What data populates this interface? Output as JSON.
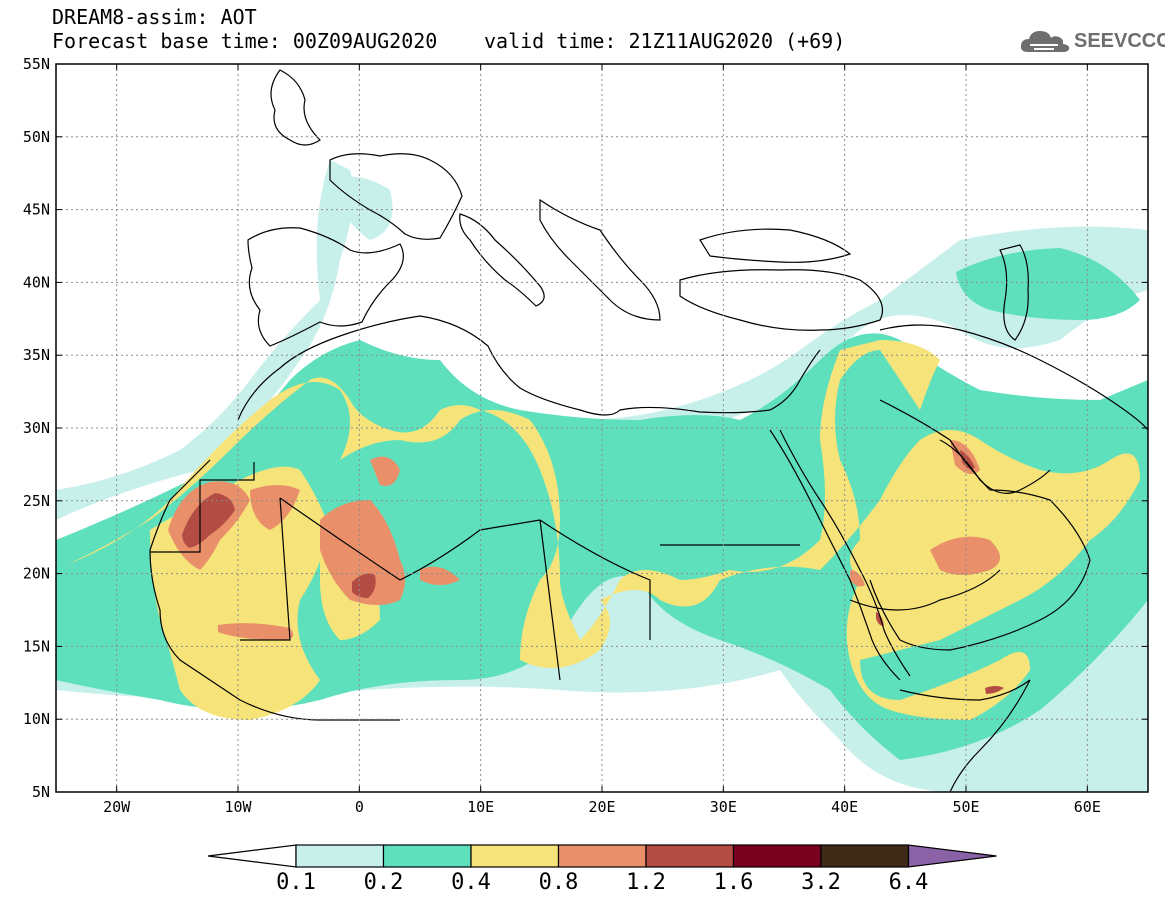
{
  "header": {
    "title": "DREAM8-assim: AOT",
    "base_time": "Forecast base time: 00Z09AUG2020",
    "valid_time": "valid time: 21Z11AUG2020 (+69)"
  },
  "logo": {
    "text": "SEEVCCC",
    "icon": "cloud-icon"
  },
  "map": {
    "lon_range": [
      -25,
      65
    ],
    "lat_range": [
      5,
      55
    ],
    "grid": true,
    "lat_ticks": [
      {
        "value": 5,
        "label": "5N"
      },
      {
        "value": 10,
        "label": "10N"
      },
      {
        "value": 15,
        "label": "15N"
      },
      {
        "value": 20,
        "label": "20N"
      },
      {
        "value": 25,
        "label": "25N"
      },
      {
        "value": 30,
        "label": "30N"
      },
      {
        "value": 35,
        "label": "35N"
      },
      {
        "value": 40,
        "label": "40N"
      },
      {
        "value": 45,
        "label": "45N"
      },
      {
        "value": 50,
        "label": "50N"
      },
      {
        "value": 55,
        "label": "55N"
      }
    ],
    "lon_ticks": [
      {
        "value": -20,
        "label": "20W"
      },
      {
        "value": -10,
        "label": "10W"
      },
      {
        "value": 0,
        "label": "0"
      },
      {
        "value": 10,
        "label": "10E"
      },
      {
        "value": 20,
        "label": "20E"
      },
      {
        "value": 30,
        "label": "30E"
      },
      {
        "value": 40,
        "label": "40E"
      },
      {
        "value": 50,
        "label": "50E"
      },
      {
        "value": 60,
        "label": "60E"
      }
    ]
  },
  "colorbar": {
    "levels": [
      "0.1",
      "0.2",
      "0.4",
      "0.8",
      "1.2",
      "1.6",
      "3.2",
      "6.4"
    ],
    "colors": [
      "#ffffff",
      "#c8f0ea",
      "#5ee0bc",
      "#f6e47a",
      "#e9906a",
      "#b34d43",
      "#7a0020",
      "#3f2a17",
      "#8a62a8"
    ]
  }
}
